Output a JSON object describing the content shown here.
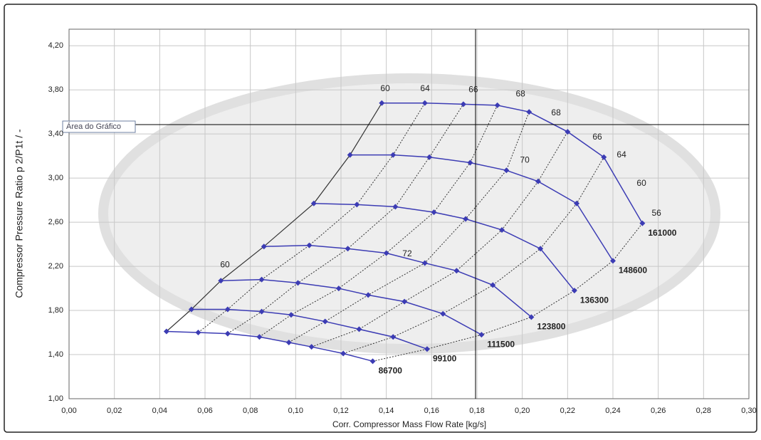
{
  "chart_data": {
    "type": "line",
    "y_label": "Compressor Pressure Ratio p 2/P1t  /  -",
    "x_label": "Corr. Compressor  Mass Flow Rate [kg/s]",
    "tooltip": "Área do Gráfico",
    "xlim": [
      0,
      0.3
    ],
    "ylim": [
      1.0,
      4.35
    ],
    "grid": true,
    "xticks": [
      {
        "value": 0,
        "label": "0,00"
      },
      {
        "value": 0.02,
        "label": "0,02"
      },
      {
        "value": 0.04,
        "label": "0,04"
      },
      {
        "value": 0.06,
        "label": "0,06"
      },
      {
        "value": 0.08,
        "label": "0,08"
      },
      {
        "value": 0.1,
        "label": "0,10"
      },
      {
        "value": 0.12,
        "label": "0,12"
      },
      {
        "value": 0.14,
        "label": "0,14"
      },
      {
        "value": 0.16,
        "label": "0,16"
      },
      {
        "value": 0.18,
        "label": "0,18"
      },
      {
        "value": 0.2,
        "label": "0,20"
      },
      {
        "value": 0.22,
        "label": "0,22"
      },
      {
        "value": 0.24,
        "label": "0,24"
      },
      {
        "value": 0.26,
        "label": "0,26"
      },
      {
        "value": 0.28,
        "label": "0,28"
      },
      {
        "value": 0.3,
        "label": "0,30"
      }
    ],
    "yticks": [
      {
        "value": 1.0,
        "label": "1,00"
      },
      {
        "value": 1.4,
        "label": "1,40"
      },
      {
        "value": 1.8,
        "label": "1,80"
      },
      {
        "value": 2.2,
        "label": "2,20"
      },
      {
        "value": 2.6,
        "label": "2,60"
      },
      {
        "value": 3.0,
        "label": "3,00"
      },
      {
        "value": 3.4,
        "label": "3,40"
      },
      {
        "value": 3.8,
        "label": "3,80"
      },
      {
        "value": 4.2,
        "label": "4,20"
      }
    ],
    "series": [
      {
        "name": "86700",
        "color": "#3c3cb4",
        "x": [
          0.043,
          0.057,
          0.07,
          0.084,
          0.097,
          0.107,
          0.121,
          0.134
        ],
        "values": [
          1.61,
          1.6,
          1.59,
          1.56,
          1.51,
          1.47,
          1.41,
          1.34
        ]
      },
      {
        "name": "99100",
        "color": "#3c3cb4",
        "x": [
          0.054,
          0.07,
          0.085,
          0.098,
          0.113,
          0.128,
          0.143,
          0.158
        ],
        "values": [
          1.81,
          1.81,
          1.79,
          1.76,
          1.7,
          1.63,
          1.56,
          1.45
        ]
      },
      {
        "name": "111500",
        "color": "#3c3cb4",
        "x": [
          0.067,
          0.085,
          0.101,
          0.119,
          0.132,
          0.148,
          0.165,
          0.182
        ],
        "values": [
          2.07,
          2.08,
          2.05,
          2.0,
          1.94,
          1.88,
          1.77,
          1.58
        ]
      },
      {
        "name": "123800",
        "color": "#3c3cb4",
        "x": [
          0.086,
          0.106,
          0.123,
          0.14,
          0.157,
          0.171,
          0.187,
          0.204
        ],
        "values": [
          2.38,
          2.39,
          2.36,
          2.32,
          2.23,
          2.16,
          2.03,
          1.74
        ]
      },
      {
        "name": "136300",
        "color": "#3c3cb4",
        "x": [
          0.108,
          0.127,
          0.144,
          0.161,
          0.175,
          0.191,
          0.208,
          0.223
        ],
        "values": [
          2.77,
          2.76,
          2.74,
          2.69,
          2.63,
          2.53,
          2.36,
          1.98
        ]
      },
      {
        "name": "148600",
        "color": "#3c3cb4",
        "x": [
          0.124,
          0.143,
          0.159,
          0.177,
          0.193,
          0.207,
          0.224,
          0.24
        ],
        "values": [
          3.21,
          3.21,
          3.19,
          3.14,
          3.07,
          2.97,
          2.77,
          2.25
        ]
      },
      {
        "name": "161000",
        "color": "#3c3cb4",
        "x": [
          0.138,
          0.157,
          0.174,
          0.189,
          0.203,
          0.22,
          0.236,
          0.253
        ],
        "values": [
          3.68,
          3.68,
          3.67,
          3.66,
          3.6,
          3.42,
          3.19,
          2.59
        ]
      }
    ],
    "annotations": [
      {
        "text": "60",
        "x": 0.1395,
        "y": 3.81
      },
      {
        "text": "64",
        "x": 0.1571,
        "y": 3.81
      },
      {
        "text": "66",
        "x": 0.1784,
        "y": 3.8
      },
      {
        "text": "68",
        "x": 0.1992,
        "y": 3.76
      },
      {
        "text": "68",
        "x": 0.2149,
        "y": 3.59
      },
      {
        "text": "66",
        "x": 0.2331,
        "y": 3.37
      },
      {
        "text": "64",
        "x": 0.2438,
        "y": 3.21
      },
      {
        "text": "60",
        "x": 0.2526,
        "y": 2.95
      },
      {
        "text": "56",
        "x": 0.2592,
        "y": 2.68
      },
      {
        "text": "70",
        "x": 0.2011,
        "y": 3.16
      },
      {
        "text": "72",
        "x": 0.1492,
        "y": 2.31
      },
      {
        "text": "60",
        "x": 0.0688,
        "y": 2.21
      }
    ]
  }
}
